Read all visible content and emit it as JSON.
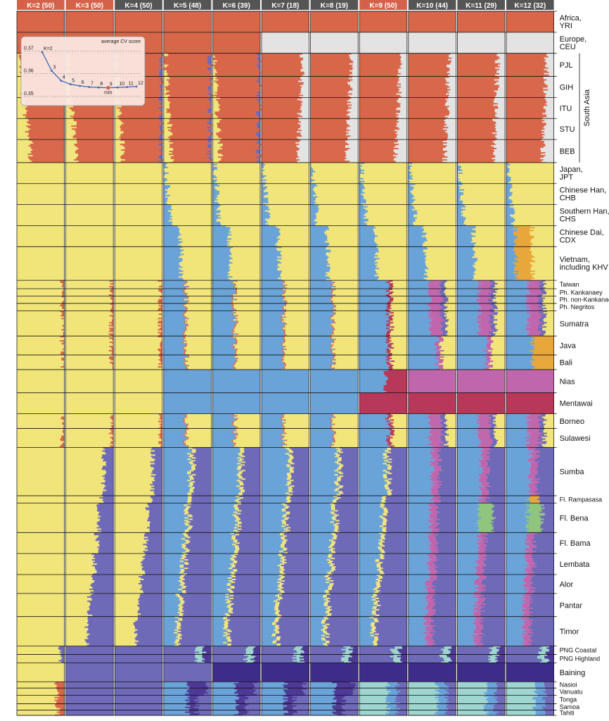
{
  "chart_data": {
    "type": "admixture-bar",
    "title": "",
    "columns": [
      {
        "label": "K=2 (50)",
        "k": 2,
        "runs": 50,
        "color": "#d4614a"
      },
      {
        "label": "K=3 (50)",
        "k": 3,
        "runs": 50,
        "color": "#d4614a"
      },
      {
        "label": "K=4 (50)",
        "k": 4,
        "runs": 50,
        "color": "#555555"
      },
      {
        "label": "K=5 (48)",
        "k": 5,
        "runs": 48,
        "color": "#555555"
      },
      {
        "label": "K=6 (39)",
        "k": 6,
        "runs": 39,
        "color": "#555555"
      },
      {
        "label": "K=7 (18)",
        "k": 7,
        "runs": 18,
        "color": "#555555"
      },
      {
        "label": "K=8 (19)",
        "k": 8,
        "runs": 19,
        "color": "#555555"
      },
      {
        "label": "K=9 (50)",
        "k": 9,
        "runs": 50,
        "color": "#d4614a"
      },
      {
        "label": "K=10 (44)",
        "k": 10,
        "runs": 44,
        "color": "#555555"
      },
      {
        "label": "K=11 (29)",
        "k": 11,
        "runs": 29,
        "color": "#555555"
      },
      {
        "label": "K=12 (32)",
        "k": 12,
        "runs": 32,
        "color": "#555555"
      }
    ],
    "populations": [
      {
        "label": "Africa, YRI",
        "rows": 1.0
      },
      {
        "label": "Europe, CEU",
        "rows": 1.0
      },
      {
        "label": "PJL",
        "rows": 1.1
      },
      {
        "label": "GIH",
        "rows": 1.0
      },
      {
        "label": "ITU",
        "rows": 1.0
      },
      {
        "label": "STU",
        "rows": 1.0
      },
      {
        "label": "BEB",
        "rows": 1.1
      },
      {
        "label": "Japan, JPT",
        "rows": 1.0
      },
      {
        "label": "Chinese Han, CHB",
        "rows": 1.0
      },
      {
        "label": "Southern Han, CHS",
        "rows": 1.0
      },
      {
        "label": "Chinese Dai, CDX",
        "rows": 1.0
      },
      {
        "label": "Vietnam, including KHV",
        "rows": 1.6
      },
      {
        "label": "Taiwan",
        "rows": 0.4
      },
      {
        "label": "Ph. Kankanaey",
        "rows": 0.35
      },
      {
        "label": "Ph. non-Kankanaey",
        "rows": 0.35
      },
      {
        "label": "Ph. Negritos",
        "rows": 0.35
      },
      {
        "label": "Sumatra",
        "rows": 1.2
      },
      {
        "label": "Java",
        "rows": 0.9
      },
      {
        "label": "Bali",
        "rows": 0.7
      },
      {
        "label": "Nias",
        "rows": 1.1
      },
      {
        "label": "Mentawai",
        "rows": 1.0
      },
      {
        "label": "Borneo",
        "rows": 0.7
      },
      {
        "label": "Sulawesi",
        "rows": 0.9
      },
      {
        "label": "Sumba",
        "rows": 2.3
      },
      {
        "label": "Fl. Rampasasa",
        "rows": 0.35
      },
      {
        "label": "Fl. Bena",
        "rows": 1.4
      },
      {
        "label": "Fl. Bama",
        "rows": 1.0
      },
      {
        "label": "Lembata",
        "rows": 1.0
      },
      {
        "label": "Alor",
        "rows": 0.9
      },
      {
        "label": "Pantar",
        "rows": 1.1
      },
      {
        "label": "Timor",
        "rows": 1.4
      },
      {
        "label": "PNG Coastal",
        "rows": 0.4
      },
      {
        "label": "PNG Highland",
        "rows": 0.4
      },
      {
        "label": "Baining",
        "rows": 0.9
      },
      {
        "label": "Nasioi",
        "rows": 0.3
      },
      {
        "label": "Vanuatu",
        "rows": 0.35
      },
      {
        "label": "Tonga",
        "rows": 0.4
      },
      {
        "label": "Samoa",
        "rows": 0.3
      },
      {
        "label": "Tahiti",
        "rows": 0.25
      }
    ],
    "region_bracket": {
      "label": "South Asia",
      "from": "PJL",
      "to": "BEB"
    },
    "palette": {
      "africa": "#d8674a",
      "europe": "#e3e3e3",
      "eastasia": "#f1e57a",
      "austronesian": "#6aa3d8",
      "papuan": "#6e6ab8",
      "png": "#4e3a96",
      "polynesian": "#9ed6cf",
      "mentawai": "#b8385a",
      "nias": "#c166ac",
      "sumbaflores": "#8fc57c",
      "dai": "#e8a73a",
      "darkpurple": "#3f2d8a"
    },
    "cv_inset": {
      "title": "average CV score",
      "k_label": "K=2",
      "min_label": "min",
      "x": [
        2,
        3,
        4,
        5,
        6,
        7,
        8,
        9,
        10,
        11,
        12
      ],
      "y": [
        0.3695,
        0.3613,
        0.3569,
        0.3553,
        0.3546,
        0.3541,
        0.3539,
        0.3538,
        0.3539,
        0.3541,
        0.3543
      ],
      "min_k": 9,
      "y_ticks": [
        "0.37",
        "0.36",
        "0.35"
      ],
      "ylim": [
        0.349,
        0.372
      ]
    }
  }
}
